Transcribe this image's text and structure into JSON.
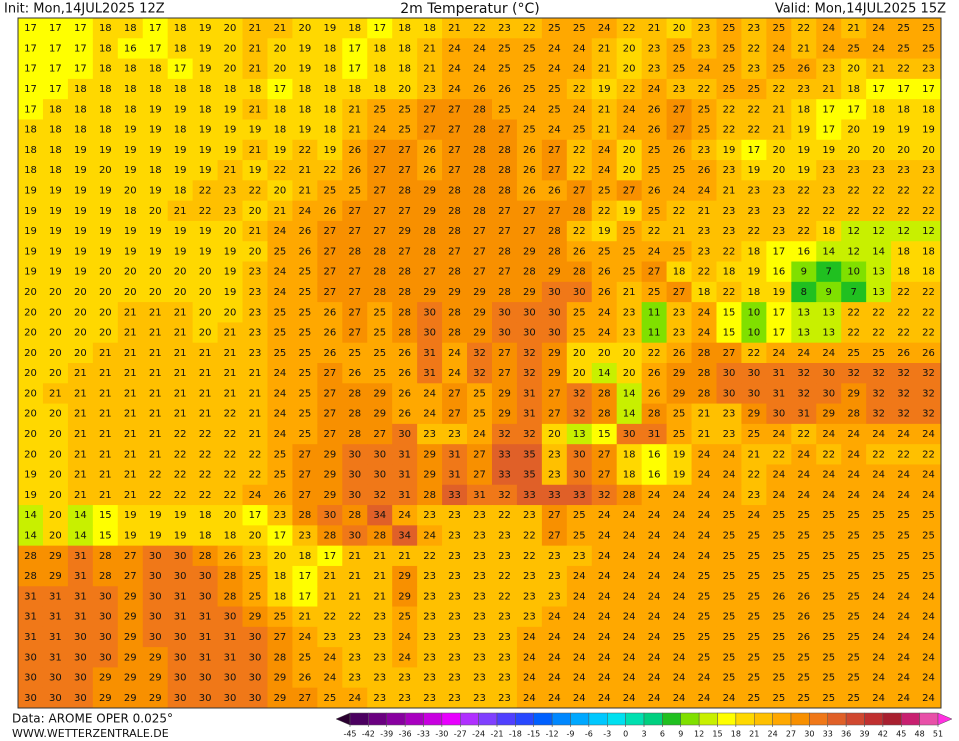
{
  "header": {
    "init": "Init: Mon,14JUL2025 12Z",
    "title": "2m Temperatur (°C)",
    "valid": "Valid: Mon,14JUL2025 15Z"
  },
  "map": {
    "grid": [
      [
        17,
        17,
        17,
        18,
        18,
        17,
        18,
        19,
        20,
        21,
        21,
        20,
        19,
        18,
        17,
        18,
        18,
        21,
        22,
        23,
        22,
        25,
        25,
        24,
        22,
        21,
        20,
        23,
        25,
        23,
        25,
        22,
        24,
        21,
        24,
        25,
        25
      ],
      [
        17,
        17,
        17,
        18,
        16,
        17,
        18,
        19,
        20,
        21,
        20,
        19,
        18,
        17,
        18,
        18,
        21,
        24,
        24,
        25,
        25,
        24,
        24,
        21,
        20,
        23,
        25,
        23,
        25,
        22,
        24,
        21,
        24,
        25,
        24,
        25,
        25
      ],
      [
        17,
        17,
        17,
        18,
        18,
        18,
        17,
        19,
        20,
        21,
        20,
        19,
        18,
        17,
        18,
        18,
        21,
        24,
        24,
        25,
        25,
        24,
        24,
        21,
        20,
        23,
        25,
        24,
        25,
        23,
        25,
        26,
        23,
        20,
        21,
        22,
        23
      ],
      [
        17,
        17,
        18,
        18,
        18,
        18,
        18,
        18,
        18,
        18,
        17,
        18,
        18,
        18,
        18,
        20,
        23,
        24,
        26,
        26,
        25,
        25,
        22,
        19,
        22,
        24,
        23,
        22,
        25,
        25,
        22,
        23,
        21,
        18,
        17,
        17,
        17
      ],
      [
        17,
        18,
        18,
        18,
        18,
        19,
        19,
        18,
        19,
        21,
        18,
        18,
        18,
        21,
        25,
        25,
        27,
        27,
        28,
        25,
        24,
        25,
        24,
        21,
        24,
        26,
        27,
        25,
        22,
        22,
        21,
        18,
        17,
        17,
        18,
        18,
        18
      ],
      [
        18,
        18,
        18,
        18,
        19,
        19,
        18,
        19,
        19,
        19,
        18,
        19,
        18,
        21,
        24,
        25,
        27,
        27,
        28,
        27,
        25,
        24,
        25,
        21,
        24,
        26,
        27,
        25,
        22,
        22,
        21,
        19,
        17,
        20,
        19,
        19,
        19
      ],
      [
        18,
        18,
        19,
        19,
        19,
        19,
        19,
        19,
        19,
        21,
        19,
        22,
        19,
        26,
        27,
        27,
        26,
        27,
        28,
        28,
        26,
        27,
        22,
        24,
        20,
        25,
        26,
        23,
        19,
        17,
        20,
        19,
        19,
        20,
        20,
        20,
        20
      ],
      [
        18,
        18,
        19,
        20,
        19,
        18,
        19,
        19,
        21,
        19,
        22,
        21,
        22,
        26,
        27,
        27,
        26,
        27,
        28,
        28,
        26,
        27,
        22,
        24,
        20,
        25,
        25,
        26,
        23,
        19,
        20,
        19,
        23,
        23,
        23,
        23,
        23
      ],
      [
        19,
        19,
        19,
        19,
        20,
        19,
        18,
        22,
        23,
        22,
        20,
        21,
        25,
        25,
        27,
        28,
        29,
        28,
        28,
        28,
        26,
        26,
        27,
        25,
        27,
        26,
        24,
        24,
        21,
        23,
        23,
        22,
        23,
        22,
        22,
        22,
        22
      ],
      [
        19,
        19,
        19,
        19,
        18,
        20,
        21,
        22,
        23,
        20,
        21,
        24,
        26,
        27,
        27,
        27,
        29,
        28,
        28,
        27,
        27,
        27,
        28,
        22,
        19,
        25,
        22,
        21,
        23,
        23,
        23,
        22,
        22,
        22,
        22,
        22,
        22
      ],
      [
        19,
        19,
        19,
        19,
        19,
        19,
        19,
        19,
        20,
        21,
        24,
        26,
        27,
        27,
        27,
        29,
        28,
        28,
        27,
        27,
        27,
        28,
        22,
        19,
        25,
        22,
        21,
        23,
        23,
        22,
        23,
        22,
        18,
        12,
        12,
        12,
        12
      ],
      [
        19,
        19,
        19,
        19,
        19,
        19,
        19,
        19,
        19,
        20,
        25,
        26,
        27,
        28,
        28,
        27,
        28,
        27,
        27,
        28,
        29,
        28,
        26,
        25,
        25,
        24,
        25,
        23,
        22,
        18,
        17,
        16,
        14,
        12,
        14,
        18,
        18
      ],
      [
        19,
        19,
        19,
        20,
        20,
        20,
        20,
        20,
        19,
        23,
        24,
        25,
        27,
        27,
        28,
        28,
        27,
        28,
        27,
        27,
        28,
        29,
        28,
        26,
        25,
        27,
        18,
        22,
        18,
        19,
        16,
        9,
        7,
        10,
        13,
        18,
        18
      ],
      [
        20,
        20,
        20,
        20,
        20,
        20,
        20,
        20,
        19,
        23,
        24,
        25,
        27,
        27,
        28,
        28,
        29,
        29,
        29,
        28,
        29,
        30,
        30,
        26,
        21,
        25,
        27,
        18,
        22,
        18,
        19,
        8,
        9,
        7,
        13,
        22,
        22
      ],
      [
        20,
        20,
        20,
        20,
        21,
        21,
        21,
        20,
        20,
        23,
        25,
        25,
        26,
        27,
        25,
        28,
        30,
        28,
        29,
        30,
        30,
        30,
        25,
        24,
        23,
        11,
        23,
        24,
        15,
        10,
        17,
        13,
        13,
        22,
        22,
        22,
        22
      ],
      [
        20,
        20,
        20,
        20,
        21,
        21,
        21,
        20,
        21,
        23,
        25,
        25,
        26,
        27,
        25,
        28,
        30,
        28,
        29,
        30,
        30,
        30,
        25,
        24,
        23,
        11,
        23,
        24,
        15,
        10,
        17,
        13,
        13,
        22,
        22,
        22,
        22
      ],
      [
        20,
        20,
        20,
        21,
        21,
        21,
        21,
        21,
        21,
        23,
        25,
        25,
        26,
        25,
        25,
        26,
        31,
        24,
        32,
        27,
        32,
        29,
        20,
        20,
        20,
        22,
        26,
        28,
        27,
        22,
        24,
        24,
        24,
        25,
        25,
        26,
        26
      ],
      [
        20,
        20,
        21,
        21,
        21,
        21,
        21,
        21,
        21,
        21,
        24,
        25,
        27,
        26,
        25,
        26,
        31,
        24,
        32,
        27,
        32,
        29,
        20,
        14,
        20,
        26,
        29,
        28,
        30,
        30,
        31,
        32,
        30,
        32,
        32,
        32,
        32
      ],
      [
        20,
        21,
        21,
        21,
        21,
        21,
        21,
        21,
        21,
        21,
        24,
        25,
        27,
        28,
        29,
        26,
        24,
        27,
        25,
        29,
        31,
        27,
        32,
        28,
        14,
        26,
        29,
        28,
        30,
        30,
        31,
        32,
        30,
        29,
        32,
        32,
        32
      ],
      [
        20,
        20,
        21,
        21,
        21,
        21,
        21,
        21,
        22,
        21,
        24,
        25,
        27,
        28,
        29,
        26,
        24,
        27,
        25,
        29,
        31,
        27,
        32,
        28,
        14,
        28,
        25,
        21,
        23,
        29,
        30,
        31,
        29,
        28,
        32,
        32,
        32
      ],
      [
        20,
        20,
        21,
        21,
        21,
        21,
        22,
        22,
        22,
        21,
        24,
        25,
        27,
        28,
        27,
        30,
        23,
        23,
        24,
        32,
        32,
        20,
        13,
        15,
        30,
        31,
        25,
        21,
        23,
        25,
        24,
        22,
        24,
        24,
        24,
        24,
        24
      ],
      [
        20,
        20,
        21,
        21,
        21,
        21,
        22,
        22,
        22,
        22,
        25,
        27,
        29,
        30,
        30,
        31,
        29,
        31,
        27,
        33,
        35,
        23,
        30,
        27,
        18,
        16,
        19,
        24,
        24,
        21,
        22,
        24,
        22,
        24,
        22,
        22,
        22
      ],
      [
        19,
        20,
        21,
        21,
        21,
        22,
        22,
        22,
        22,
        22,
        25,
        27,
        29,
        30,
        30,
        31,
        29,
        31,
        27,
        33,
        35,
        23,
        30,
        27,
        18,
        16,
        19,
        24,
        24,
        22,
        24,
        24,
        24,
        24,
        24,
        24,
        24
      ],
      [
        19,
        20,
        21,
        21,
        21,
        22,
        22,
        22,
        22,
        24,
        26,
        27,
        29,
        30,
        32,
        31,
        28,
        33,
        31,
        32,
        33,
        33,
        33,
        32,
        28,
        24,
        24,
        24,
        24,
        23,
        24,
        24,
        24,
        24,
        24,
        24,
        24
      ],
      [
        14,
        20,
        14,
        15,
        19,
        19,
        19,
        18,
        20,
        17,
        23,
        28,
        30,
        28,
        34,
        24,
        23,
        23,
        23,
        22,
        23,
        27,
        25,
        24,
        24,
        24,
        24,
        24,
        25,
        24,
        25,
        25,
        25,
        25,
        25,
        25,
        25
      ],
      [
        14,
        20,
        14,
        15,
        19,
        19,
        19,
        18,
        18,
        20,
        17,
        23,
        28,
        30,
        28,
        34,
        24,
        23,
        23,
        23,
        22,
        27,
        25,
        24,
        24,
        24,
        24,
        24,
        25,
        25,
        25,
        25,
        25,
        25,
        25,
        25,
        25
      ],
      [
        28,
        29,
        31,
        28,
        27,
        30,
        30,
        28,
        26,
        23,
        20,
        18,
        17,
        21,
        21,
        21,
        22,
        23,
        23,
        23,
        22,
        23,
        23,
        24,
        24,
        24,
        24,
        24,
        25,
        25,
        25,
        25,
        25,
        25,
        25,
        25,
        25
      ],
      [
        28,
        29,
        31,
        28,
        27,
        30,
        30,
        30,
        28,
        25,
        18,
        17,
        21,
        21,
        21,
        29,
        23,
        23,
        23,
        22,
        23,
        23,
        24,
        24,
        24,
        24,
        24,
        25,
        25,
        25,
        25,
        25,
        25,
        25,
        25,
        25,
        25
      ],
      [
        31,
        31,
        31,
        30,
        29,
        30,
        31,
        30,
        28,
        25,
        18,
        17,
        21,
        21,
        21,
        29,
        23,
        23,
        23,
        22,
        23,
        23,
        24,
        24,
        24,
        24,
        24,
        25,
        25,
        25,
        26,
        26,
        25,
        25,
        24,
        24,
        24
      ],
      [
        31,
        31,
        31,
        30,
        29,
        30,
        31,
        31,
        30,
        29,
        25,
        21,
        22,
        22,
        23,
        25,
        23,
        23,
        23,
        23,
        23,
        24,
        24,
        24,
        24,
        24,
        24,
        25,
        25,
        25,
        25,
        26,
        25,
        25,
        24,
        24,
        24
      ],
      [
        31,
        31,
        30,
        30,
        29,
        30,
        30,
        31,
        31,
        30,
        27,
        24,
        23,
        23,
        23,
        24,
        23,
        23,
        23,
        23,
        24,
        24,
        24,
        24,
        24,
        24,
        25,
        25,
        25,
        25,
        25,
        26,
        25,
        25,
        24,
        24,
        24
      ],
      [
        30,
        31,
        30,
        30,
        29,
        29,
        30,
        31,
        31,
        30,
        28,
        25,
        24,
        23,
        23,
        24,
        23,
        23,
        23,
        23,
        24,
        24,
        24,
        24,
        24,
        24,
        24,
        25,
        25,
        25,
        25,
        25,
        25,
        25,
        24,
        24,
        24
      ],
      [
        30,
        30,
        30,
        29,
        29,
        29,
        30,
        30,
        30,
        30,
        29,
        26,
        24,
        23,
        23,
        23,
        23,
        23,
        23,
        23,
        24,
        24,
        24,
        24,
        24,
        24,
        24,
        24,
        25,
        25,
        25,
        25,
        25,
        25,
        24,
        24,
        24
      ],
      [
        30,
        30,
        30,
        29,
        29,
        29,
        30,
        30,
        30,
        30,
        29,
        27,
        25,
        24,
        23,
        23,
        23,
        23,
        23,
        23,
        24,
        24,
        24,
        24,
        24,
        24,
        24,
        24,
        24,
        25,
        25,
        25,
        25,
        25,
        24,
        24,
        24
      ]
    ]
  },
  "legend": {
    "ticks": [
      -45,
      -42,
      -39,
      -36,
      -33,
      -30,
      -27,
      -24,
      -21,
      -18,
      -15,
      -12,
      -9,
      -6,
      -3,
      0,
      3,
      6,
      9,
      12,
      15,
      18,
      21,
      24,
      27,
      30,
      33,
      36,
      39,
      42,
      45,
      48,
      51
    ],
    "colors": [
      "#2a0030",
      "#4b0060",
      "#6a0080",
      "#8800a0",
      "#a800c0",
      "#c800e0",
      "#e800ff",
      "#b030ff",
      "#8040ff",
      "#5040ff",
      "#2848ff",
      "#0060ff",
      "#0088ff",
      "#00a8ff",
      "#00c8ff",
      "#00e0f0",
      "#00e0b0",
      "#00d080",
      "#20c020",
      "#80e000",
      "#c8f000",
      "#ffff00",
      "#ffd800",
      "#ffc000",
      "#ffa800",
      "#f89000",
      "#f07818",
      "#e06028",
      "#d04830",
      "#c03030",
      "#a82030",
      "#c82070",
      "#e850a8",
      "#ff30e0"
    ]
  },
  "footer": {
    "source": "Data: AROME OPER 0.025°",
    "website": "WWW.WETTERZENTRALE.DE"
  }
}
